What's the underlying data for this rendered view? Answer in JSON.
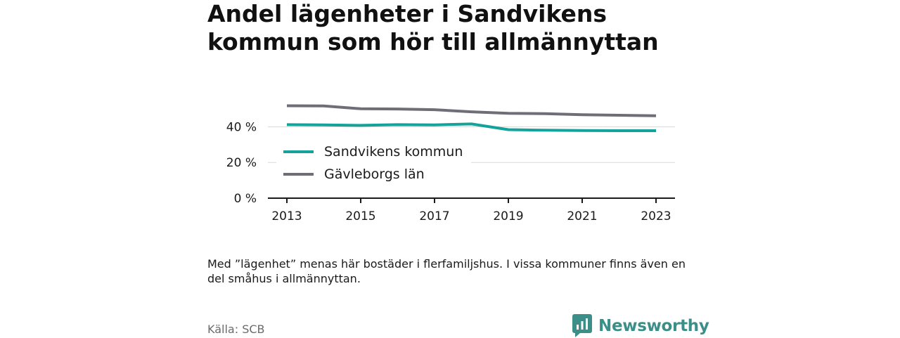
{
  "title": "Andel lägenheter i Sandvikens kommun som hör till allmännyttan",
  "note": "Med ”lägenhet” menas här bostäder i flerfamiljshus. I vissa kommuner finns även en del småhus i allmännyttan.",
  "source": "Källa: SCB",
  "brand": {
    "name": "Newsworthy",
    "icon": "newsworthy-logo-icon",
    "color": "#3b8f88"
  },
  "chart_data": {
    "type": "line",
    "x": [
      2013,
      2014,
      2015,
      2016,
      2017,
      2018,
      2019,
      2020,
      2021,
      2022,
      2023
    ],
    "x_tick_labels": [
      "2013",
      "2015",
      "2017",
      "2019",
      "2021",
      "2023"
    ],
    "y_tick_labels": [
      "0 %",
      "20 %",
      "40 %"
    ],
    "ylim": [
      0,
      52
    ],
    "grid": true,
    "legend_position": "inside-left",
    "series": [
      {
        "name": "Sandvikens kommun",
        "color": "#14a39a",
        "values": [
          41.2,
          41.1,
          40.8,
          41.2,
          41.1,
          41.6,
          38.4,
          38.1,
          37.9,
          37.8,
          37.8
        ]
      },
      {
        "name": "Gävleborgs län",
        "color": "#6f6e77",
        "values": [
          51.8,
          51.7,
          50.1,
          50.0,
          49.6,
          48.4,
          47.6,
          47.4,
          46.8,
          46.5,
          46.2
        ]
      }
    ]
  }
}
